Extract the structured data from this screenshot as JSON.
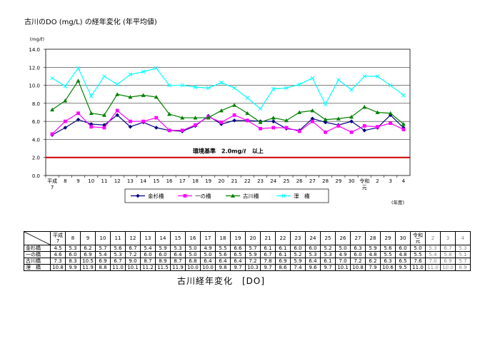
{
  "page_title": "古川のDO (mg/L) の経年変化 (年平均値)",
  "caption": "古川経年変化　[DO]",
  "chart_data": {
    "type": "line",
    "title": "古川のDO (mg/L) の経年変化 (年平均値)",
    "ylabel": "(mg/ℓ)",
    "xlabel": "(年度)",
    "ylim": [
      0,
      14
    ],
    "yticks": [
      "0.0",
      "2.0",
      "4.0",
      "6.0",
      "8.0",
      "10.0",
      "12.0",
      "14.0"
    ],
    "grid": true,
    "categories": [
      "平成7",
      "8",
      "9",
      "10",
      "11",
      "12",
      "13",
      "14",
      "15",
      "16",
      "17",
      "18",
      "19",
      "20",
      "21",
      "22",
      "23",
      "24",
      "25",
      "26",
      "27",
      "28",
      "29",
      "30",
      "令和元",
      "2",
      "3",
      "4"
    ],
    "x_tick_labels": [
      "平成\n7",
      "8",
      "9",
      "10",
      "11",
      "12",
      "13",
      "14",
      "15",
      "16",
      "17",
      "18",
      "19",
      "20",
      "21",
      "22",
      "23",
      "24",
      "25",
      "26",
      "27",
      "28",
      "29",
      "30",
      "令和\n元",
      "2",
      "3",
      "4"
    ],
    "series": [
      {
        "name": "金杉橋",
        "color": "#000080",
        "marker": "diamond",
        "values": [
          4.5,
          5.3,
          6.2,
          5.7,
          5.6,
          6.7,
          5.4,
          5.9,
          5.3,
          5.0,
          4.9,
          5.5,
          6.6,
          5.7,
          6.1,
          6.1,
          6.0,
          6.0,
          5.2,
          5.0,
          6.3,
          5.9,
          5.6,
          6.0,
          5.0,
          5.3,
          6.7,
          5.3
        ]
      },
      {
        "name": "一の橋",
        "color": "#ff00ff",
        "marker": "square",
        "values": [
          4.6,
          6.0,
          6.9,
          5.4,
          5.3,
          7.2,
          6.0,
          6.0,
          6.4,
          5.0,
          5.0,
          5.6,
          6.5,
          5.9,
          6.7,
          6.1,
          5.2,
          5.3,
          5.3,
          4.9,
          6.0,
          4.8,
          5.5,
          4.8,
          5.5,
          5.4,
          5.8,
          5.1
        ]
      },
      {
        "name": "古川橋",
        "color": "#008000",
        "marker": "triangle",
        "values": [
          7.3,
          8.3,
          10.5,
          6.9,
          6.7,
          9.0,
          8.7,
          8.9,
          8.7,
          6.8,
          6.4,
          6.4,
          6.4,
          7.2,
          7.8,
          6.9,
          5.9,
          6.4,
          6.1,
          7.0,
          7.2,
          6.2,
          6.3,
          6.5,
          7.6,
          7.0,
          6.9,
          5.7
        ]
      },
      {
        "name": "浬　橋",
        "color": "#00ffff",
        "marker": "x",
        "values": [
          10.8,
          9.9,
          11.9,
          8.8,
          11.0,
          10.1,
          11.2,
          11.5,
          11.9,
          10.0,
          10.0,
          9.8,
          9.7,
          10.3,
          9.7,
          8.6,
          7.4,
          9.6,
          9.7,
          10.1,
          10.8,
          7.9,
          10.6,
          9.5,
          11.0,
          11.0,
          10.0,
          8.9
        ]
      }
    ],
    "annotations": [
      {
        "text": "環境基準　2.0mg/ℓ　以上",
        "value": 2.0,
        "color": "#cc0000"
      }
    ]
  },
  "table": {
    "header_years": [
      "平成\n7",
      "8",
      "9",
      "10",
      "11",
      "12",
      "13",
      "14",
      "15",
      "16",
      "17",
      "18",
      "19",
      "20",
      "21",
      "22",
      "23",
      "24",
      "25",
      "26",
      "27",
      "28",
      "29",
      "30",
      "令和\n元",
      "2",
      "3",
      "4"
    ],
    "rows": [
      {
        "label": "金杉橋",
        "values": [
          "4.5",
          "5.3",
          "6.2",
          "5.7",
          "5.6",
          "6.7",
          "5.4",
          "5.9",
          "5.3",
          "5.0",
          "4.9",
          "5.5",
          "6.6",
          "5.7",
          "6.1",
          "6.1",
          "6.0",
          "6.0",
          "5.2",
          "5.0",
          "6.3",
          "5.9",
          "5.6",
          "6.0",
          "5.0",
          "5.3",
          "6.7",
          "5.3"
        ]
      },
      {
        "label": "一の橋",
        "values": [
          "4.6",
          "6.0",
          "6.9",
          "5.4",
          "5.3",
          "7.2",
          "6.0",
          "6.0",
          "6.4",
          "5.0",
          "5.0",
          "5.6",
          "6.5",
          "5.9",
          "6.7",
          "6.1",
          "5.2",
          "5.3",
          "5.3",
          "4.9",
          "6.0",
          "4.8",
          "5.5",
          "4.8",
          "5.5",
          "5.4",
          "5.8",
          "5.1"
        ]
      },
      {
        "label": "古川橋",
        "values": [
          "7.3",
          "8.3",
          "10.5",
          "6.9",
          "6.7",
          "9.0",
          "8.7",
          "8.9",
          "8.7",
          "6.8",
          "6.4",
          "6.4",
          "6.4",
          "7.2",
          "7.8",
          "6.9",
          "5.9",
          "6.4",
          "6.1",
          "7.0",
          "7.2",
          "6.2",
          "6.3",
          "6.5",
          "7.6",
          "7.0",
          "6.9",
          "5.7"
        ]
      },
      {
        "label": "浬　橋",
        "values": [
          "10.8",
          "9.9",
          "11.9",
          "8.8",
          "11.0",
          "10.1",
          "11.2",
          "11.5",
          "11.9",
          "10.0",
          "10.0",
          "9.8",
          "9.7",
          "10.3",
          "9.7",
          "8.6",
          "7.4",
          "9.6",
          "9.7",
          "10.1",
          "10.8",
          "7.9",
          "10.6",
          "9.5",
          "11.0",
          "11.0",
          "10.0",
          "8.9"
        ]
      }
    ]
  }
}
